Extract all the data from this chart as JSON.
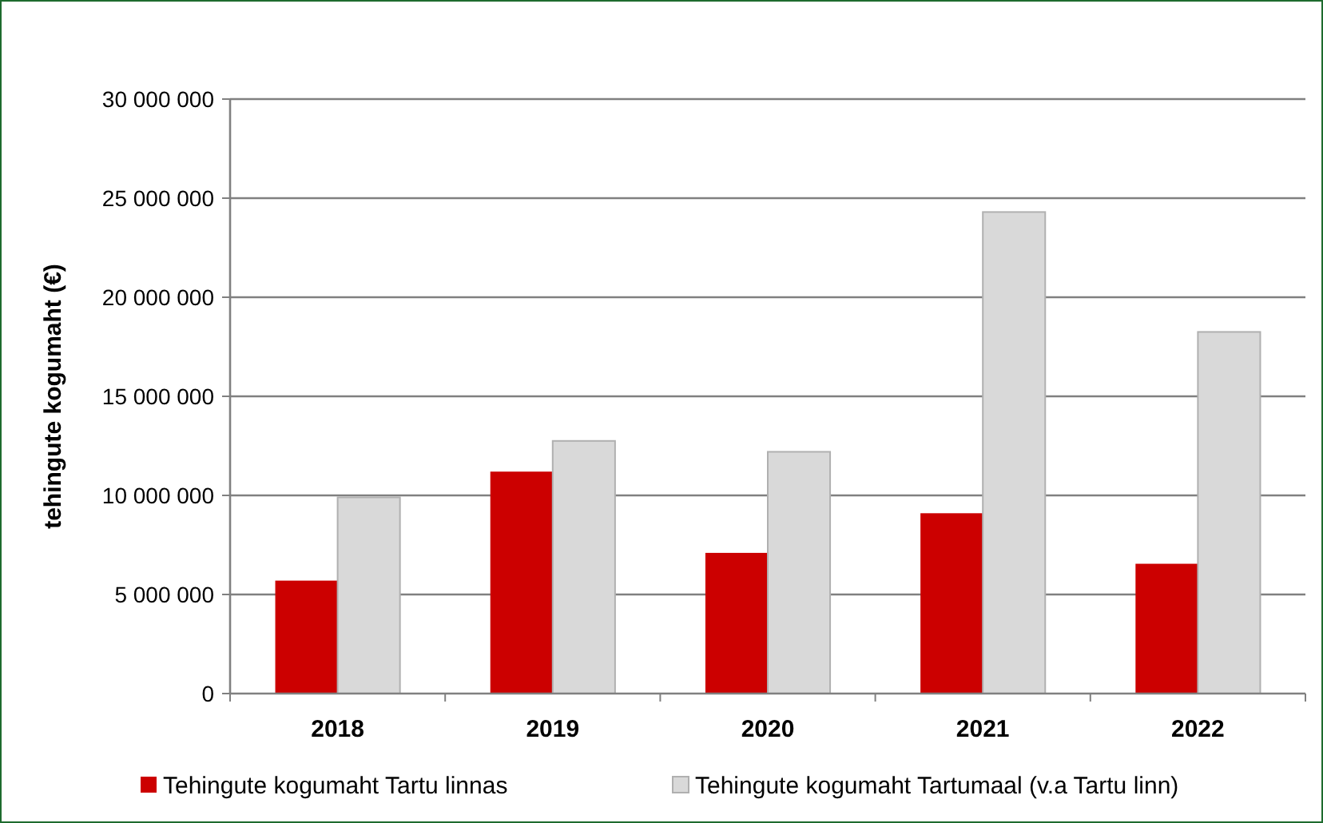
{
  "chart_data": {
    "type": "bar",
    "ylabel": "tehingute kogumaht (€)",
    "categories": [
      "2018",
      "2019",
      "2020",
      "2021",
      "2022"
    ],
    "series": [
      {
        "name": "Tehingute kogumaht Tartu linnas",
        "color": "#cc0000",
        "values": [
          5700000,
          11200000,
          7100000,
          9100000,
          6550000
        ]
      },
      {
        "name": "Tehingute kogumaht Tartumaal (v.a Tartu linn)",
        "color": "#d9d9d9",
        "values": [
          9900000,
          12750000,
          12200000,
          24300000,
          18250000
        ]
      }
    ],
    "ylim": [
      0,
      30000000
    ],
    "yticks": [
      {
        "value": 0,
        "label": "0"
      },
      {
        "value": 5000000,
        "label": "5 000 000"
      },
      {
        "value": 10000000,
        "label": "10 000 000"
      },
      {
        "value": 15000000,
        "label": "15 000 000"
      },
      {
        "value": 20000000,
        "label": "20 000 000"
      },
      {
        "value": 25000000,
        "label": "25 000 000"
      },
      {
        "value": 30000000,
        "label": "30 000 000"
      }
    ],
    "grid": "y",
    "legend": "bottom"
  }
}
